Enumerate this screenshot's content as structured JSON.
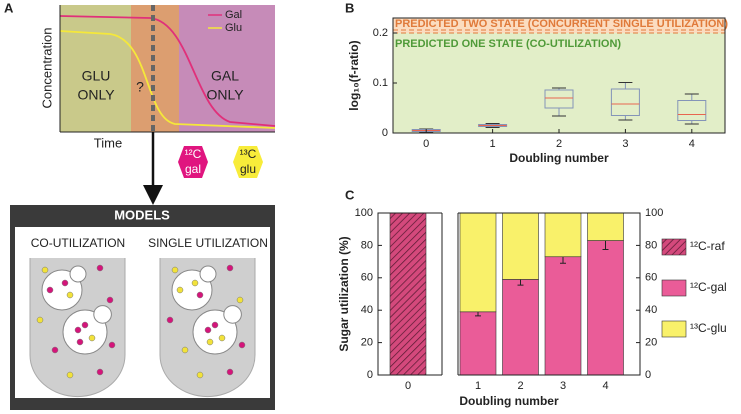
{
  "panel_labels": [
    "A",
    "B",
    "C"
  ],
  "schematic": {
    "y_label": "Concentration",
    "x_label": "Time",
    "legend": [
      "Gal",
      "Glu"
    ],
    "regions": [
      "GLU",
      "ONLY",
      "?",
      "GAL",
      "ONLY"
    ],
    "hexagons": [
      [
        "¹²C",
        "gal"
      ],
      [
        "¹³C",
        "glu"
      ]
    ],
    "models": {
      "title": "MODELS",
      "left": "CO-UTILIZATION",
      "right": "SINGLE UTILIZATION"
    }
  },
  "chart_data": [
    {
      "type": "box",
      "y_label": "log₁₀(f-ratio)",
      "x_label": "Doubling number",
      "categories": [
        "0",
        "1",
        "2",
        "3",
        "4"
      ],
      "boxes": [
        {
          "min": 0.002,
          "q1": 0.003,
          "median": 0.005,
          "q3": 0.007,
          "max": 0.008
        },
        {
          "min": 0.011,
          "q1": 0.013,
          "median": 0.015,
          "q3": 0.017,
          "max": 0.019
        },
        {
          "min": 0.034,
          "q1": 0.05,
          "median": 0.07,
          "q3": 0.086,
          "max": 0.09
        },
        {
          "min": 0.026,
          "q1": 0.035,
          "median": 0.058,
          "q3": 0.088,
          "max": 0.101
        },
        {
          "min": 0.018,
          "q1": 0.025,
          "median": 0.037,
          "q3": 0.065,
          "max": 0.078
        }
      ],
      "box_color": "#8494b8",
      "median_color": "#e8654f",
      "bands": [
        {
          "from": 0,
          "to": 0.2,
          "color": "#e2eec8",
          "label": "PREDICTED ONE STATE (CO-UTILIZATION)",
          "label_color": "#4f9a38"
        },
        {
          "from": 0.2,
          "to": 0.23,
          "color": "#fbdcc0",
          "label": "PREDICTED TWO STATE (CONCURRENT SINGLE UTILIZATION)",
          "label_color": "#e07a3a"
        }
      ],
      "ylim": [
        0,
        0.23
      ],
      "yticks": [
        0,
        0.1,
        0.2
      ]
    },
    {
      "type": "stacked_bar",
      "y_label": "Sugar utilization (%)",
      "x_label": "Doubling number",
      "categories": [
        "0",
        "1",
        "2",
        "3",
        "4"
      ],
      "series": [
        {
          "name": "¹²C-raf",
          "color": "#d4497c",
          "hatch": true,
          "values": [
            100,
            null,
            null,
            null,
            null
          ]
        },
        {
          "name": "¹²C-gal",
          "color": "#ea5c98",
          "values": [
            null,
            39,
            59,
            73,
            83
          ],
          "errors": [
            null,
            2.5,
            3.5,
            4,
            5.5
          ]
        },
        {
          "name": "¹³C-glu",
          "color": "#f9f16a",
          "values": [
            null,
            61,
            41,
            27,
            17
          ]
        }
      ],
      "ylim": [
        0,
        100
      ],
      "yticks": [
        0,
        20,
        40,
        60,
        80,
        100
      ],
      "y2lim": [
        0,
        100
      ],
      "y2ticks": [
        0,
        20,
        40,
        60,
        80,
        100
      ]
    }
  ]
}
